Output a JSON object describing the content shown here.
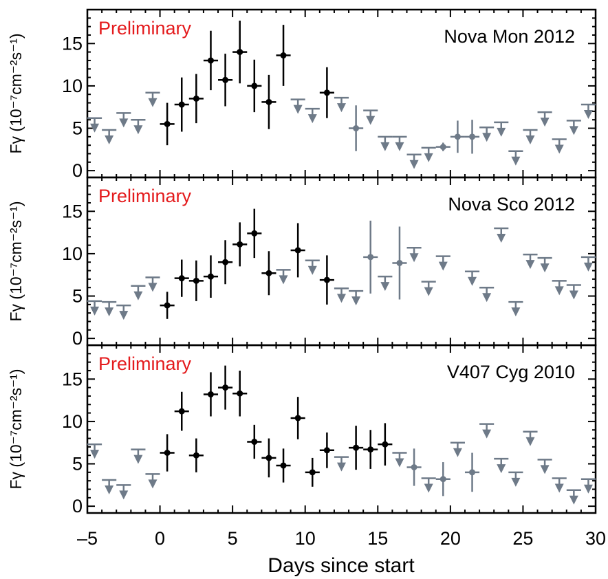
{
  "chart_data": {
    "type": "scatter",
    "x_label": "Days since start",
    "y_label": "Fγ (10⁻⁷cm⁻²s⁻¹)",
    "xlim": [
      -5,
      30
    ],
    "x_ticks": [
      -5,
      0,
      5,
      10,
      15,
      20,
      25,
      30
    ],
    "x_tick_labels": [
      "–5",
      "0",
      "5",
      "10",
      "15",
      "20",
      "25",
      "30"
    ],
    "watermark": "Preliminary",
    "colors": {
      "detection": "#000000",
      "upper_limit": "#6e7a88",
      "watermark": "#e41a1c"
    },
    "panels": [
      {
        "title": "Nova Mon 2012",
        "ylim": [
          -0.8,
          19
        ],
        "y_ticks": [
          0,
          5,
          10,
          15
        ],
        "detections": [
          {
            "x": 0.5,
            "y": 5.5,
            "yerr": 2.5
          },
          {
            "x": 1.5,
            "y": 7.8,
            "yerr": 3.2
          },
          {
            "x": 2.5,
            "y": 8.5,
            "yerr": 2.9
          },
          {
            "x": 3.5,
            "y": 13.0,
            "yerr": 3.5
          },
          {
            "x": 4.5,
            "y": 10.7,
            "yerr": 3.1
          },
          {
            "x": 5.5,
            "y": 14.0,
            "yerr": 3.7
          },
          {
            "x": 6.5,
            "y": 10.0,
            "yerr": 3.1
          },
          {
            "x": 7.5,
            "y": 8.1,
            "yerr": 3.2
          },
          {
            "x": 8.5,
            "y": 13.6,
            "yerr": 3.6
          },
          {
            "x": 11.5,
            "y": 9.2,
            "yerr": 3.0
          }
        ],
        "gray_points": [
          {
            "x": 13.5,
            "y": 5.0,
            "yerr": 2.7
          },
          {
            "x": 19.5,
            "y": 2.8,
            "yerr": 0.5
          },
          {
            "x": 20.5,
            "y": 4.0,
            "yerr": 1.9
          },
          {
            "x": 21.5,
            "y": 4.0,
            "yerr": 2.0
          }
        ],
        "upper_limits": [
          {
            "x": -4.5,
            "y": 6.2
          },
          {
            "x": -3.5,
            "y": 4.8
          },
          {
            "x": -2.5,
            "y": 6.8
          },
          {
            "x": -1.5,
            "y": 6.0
          },
          {
            "x": -0.5,
            "y": 9.2
          },
          {
            "x": 9.5,
            "y": 8.4
          },
          {
            "x": 10.5,
            "y": 7.3
          },
          {
            "x": 12.5,
            "y": 8.6
          },
          {
            "x": 14.5,
            "y": 7.1
          },
          {
            "x": 15.5,
            "y": 4.0
          },
          {
            "x": 16.5,
            "y": 4.0
          },
          {
            "x": 17.5,
            "y": 1.9
          },
          {
            "x": 18.5,
            "y": 2.7
          },
          {
            "x": 22.5,
            "y": 5.1
          },
          {
            "x": 23.5,
            "y": 5.7
          },
          {
            "x": 24.5,
            "y": 2.3
          },
          {
            "x": 25.5,
            "y": 4.8
          },
          {
            "x": 26.5,
            "y": 6.9
          },
          {
            "x": 27.5,
            "y": 3.7
          },
          {
            "x": 28.5,
            "y": 5.9
          },
          {
            "x": 29.5,
            "y": 7.8
          }
        ]
      },
      {
        "title": "Nova Sco 2012",
        "ylim": [
          -0.8,
          19
        ],
        "y_ticks": [
          0,
          5,
          10,
          15
        ],
        "detections": [
          {
            "x": 0.5,
            "y": 3.9,
            "yerr": 1.6
          },
          {
            "x": 1.5,
            "y": 7.1,
            "yerr": 2.2
          },
          {
            "x": 2.5,
            "y": 6.8,
            "yerr": 2.4
          },
          {
            "x": 3.5,
            "y": 7.3,
            "yerr": 2.5
          },
          {
            "x": 4.5,
            "y": 9.0,
            "yerr": 2.6
          },
          {
            "x": 5.5,
            "y": 11.1,
            "yerr": 2.6
          },
          {
            "x": 6.5,
            "y": 12.4,
            "yerr": 2.9
          },
          {
            "x": 7.5,
            "y": 7.7,
            "yerr": 2.6
          },
          {
            "x": 9.5,
            "y": 10.4,
            "yerr": 3.2
          },
          {
            "x": 11.5,
            "y": 6.9,
            "yerr": 2.9
          }
        ],
        "gray_points": [
          {
            "x": 14.5,
            "y": 9.6,
            "yerr": 4.3
          },
          {
            "x": 16.5,
            "y": 8.9,
            "yerr": 4.3
          }
        ],
        "upper_limits": [
          {
            "x": -4.5,
            "y": 4.4
          },
          {
            "x": -3.5,
            "y": 4.3
          },
          {
            "x": -2.5,
            "y": 3.9
          },
          {
            "x": -1.5,
            "y": 6.2
          },
          {
            "x": -0.5,
            "y": 7.2
          },
          {
            "x": 8.5,
            "y": 8.1
          },
          {
            "x": 10.5,
            "y": 9.2
          },
          {
            "x": 12.5,
            "y": 5.9
          },
          {
            "x": 13.5,
            "y": 5.6
          },
          {
            "x": 15.5,
            "y": 7.3
          },
          {
            "x": 17.5,
            "y": 10.7
          },
          {
            "x": 18.5,
            "y": 6.7
          },
          {
            "x": 19.5,
            "y": 9.7
          },
          {
            "x": 21.5,
            "y": 7.9
          },
          {
            "x": 22.5,
            "y": 6.0
          },
          {
            "x": 23.5,
            "y": 13.0
          },
          {
            "x": 24.5,
            "y": 4.3
          },
          {
            "x": 25.5,
            "y": 9.9
          },
          {
            "x": 26.5,
            "y": 9.5
          },
          {
            "x": 27.5,
            "y": 6.8
          },
          {
            "x": 28.5,
            "y": 6.3
          },
          {
            "x": 29.5,
            "y": 9.6
          }
        ]
      },
      {
        "title": "V407 Cyg 2010",
        "ylim": [
          -0.8,
          19
        ],
        "y_ticks": [
          0,
          5,
          10,
          15
        ],
        "detections": [
          {
            "x": 0.5,
            "y": 6.3,
            "yerr": 2.2
          },
          {
            "x": 1.5,
            "y": 11.2,
            "yerr": 2.3
          },
          {
            "x": 2.5,
            "y": 6.0,
            "yerr": 2.0
          },
          {
            "x": 3.5,
            "y": 13.2,
            "yerr": 2.6
          },
          {
            "x": 4.5,
            "y": 14.0,
            "yerr": 2.6
          },
          {
            "x": 5.5,
            "y": 13.3,
            "yerr": 2.7
          },
          {
            "x": 6.5,
            "y": 7.6,
            "yerr": 2.0
          },
          {
            "x": 7.5,
            "y": 5.7,
            "yerr": 2.3
          },
          {
            "x": 8.5,
            "y": 4.8,
            "yerr": 2.0
          },
          {
            "x": 9.5,
            "y": 10.4,
            "yerr": 2.5
          },
          {
            "x": 10.5,
            "y": 4.0,
            "yerr": 1.7
          },
          {
            "x": 11.5,
            "y": 6.6,
            "yerr": 2.1
          },
          {
            "x": 13.5,
            "y": 6.9,
            "yerr": 2.6
          },
          {
            "x": 14.5,
            "y": 6.7,
            "yerr": 2.3
          },
          {
            "x": 15.5,
            "y": 7.3,
            "yerr": 2.5
          }
        ],
        "gray_points": [
          {
            "x": 17.5,
            "y": 4.6,
            "yerr": 2.2
          },
          {
            "x": 19.5,
            "y": 3.2,
            "yerr": 2.0
          },
          {
            "x": 21.5,
            "y": 4.0,
            "yerr": 2.3
          }
        ],
        "upper_limits": [
          {
            "x": -4.5,
            "y": 7.3
          },
          {
            "x": -3.5,
            "y": 3.1
          },
          {
            "x": -2.5,
            "y": 2.5
          },
          {
            "x": -1.5,
            "y": 6.7
          },
          {
            "x": -0.5,
            "y": 3.8
          },
          {
            "x": 12.5,
            "y": 5.8
          },
          {
            "x": 16.5,
            "y": 6.3
          },
          {
            "x": 18.5,
            "y": 3.3
          },
          {
            "x": 20.5,
            "y": 7.5
          },
          {
            "x": 22.5,
            "y": 9.7
          },
          {
            "x": 23.5,
            "y": 5.6
          },
          {
            "x": 24.5,
            "y": 4.0
          },
          {
            "x": 25.5,
            "y": 8.8
          },
          {
            "x": 26.5,
            "y": 5.5
          },
          {
            "x": 27.5,
            "y": 3.3
          },
          {
            "x": 28.5,
            "y": 1.9
          },
          {
            "x": 29.5,
            "y": 3.2
          }
        ]
      }
    ]
  }
}
